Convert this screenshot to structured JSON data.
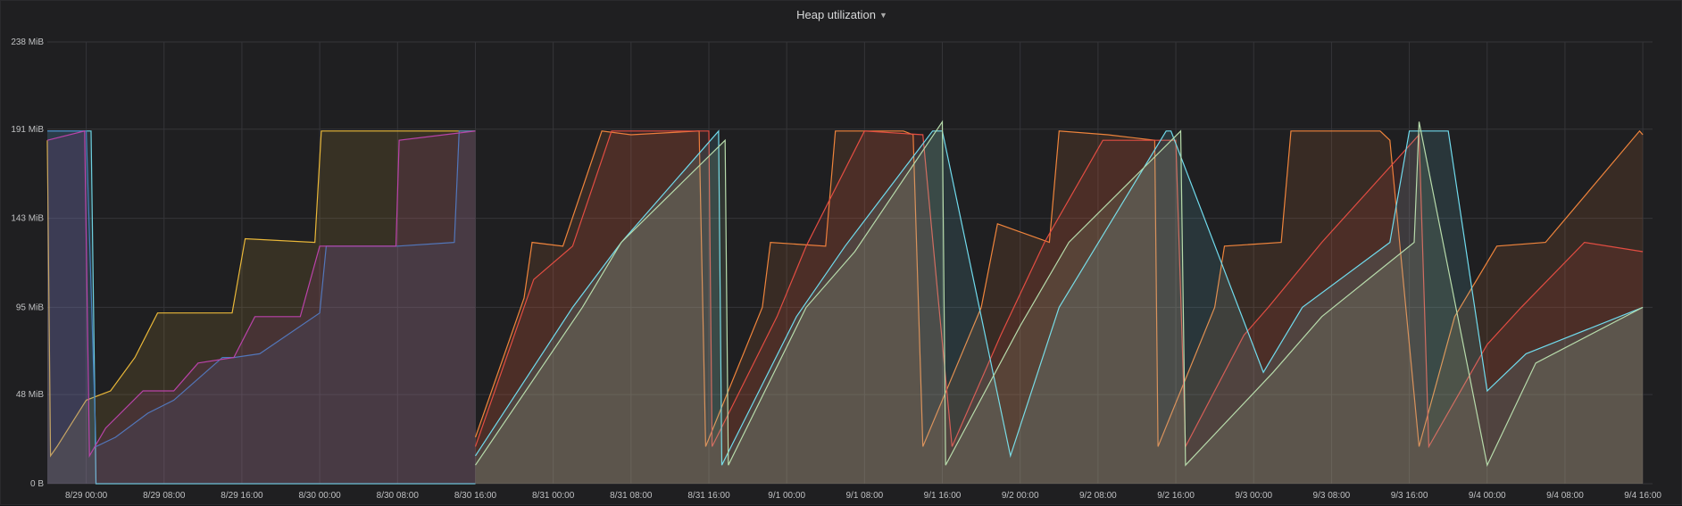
{
  "panel": {
    "title": "Heap utilization"
  },
  "chart_data": {
    "type": "area",
    "title": "Heap utilization",
    "xlabel": "",
    "ylabel": "",
    "y_unit": "MiB",
    "xlim": [
      "2016-08-28T20:00",
      "2016-09-04T17:00"
    ],
    "ylim": [
      0,
      238
    ],
    "grid": true,
    "legend": "none",
    "y_ticks": [
      "0 B",
      "48 MiB",
      "95 MiB",
      "143 MiB",
      "191 MiB",
      "238 MiB"
    ],
    "y_tick_values": [
      0,
      48,
      95,
      143,
      191,
      238
    ],
    "x_ticks": [
      "8/29 00:00",
      "8/29 08:00",
      "8/29 16:00",
      "8/30 00:00",
      "8/30 08:00",
      "8/30 16:00",
      "8/31 00:00",
      "8/31 08:00",
      "8/31 16:00",
      "9/1 00:00",
      "9/1 08:00",
      "9/1 16:00",
      "9/2 00:00",
      "9/2 08:00",
      "9/2 16:00",
      "9/3 00:00",
      "9/3 08:00",
      "9/3 16:00",
      "9/4 00:00",
      "9/4 08:00",
      "9/4 16:00"
    ],
    "x_tick_values": [
      "2016-08-29T00:00",
      "2016-08-29T08:00",
      "2016-08-29T16:00",
      "2016-08-30T00:00",
      "2016-08-30T08:00",
      "2016-08-30T16:00",
      "2016-08-31T00:00",
      "2016-08-31T08:00",
      "2016-08-31T16:00",
      "2016-09-01T00:00",
      "2016-09-01T08:00",
      "2016-09-01T16:00",
      "2016-09-02T00:00",
      "2016-09-02T08:00",
      "2016-09-02T16:00",
      "2016-09-03T00:00",
      "2016-09-03T08:00",
      "2016-09-03T16:00",
      "2016-09-04T00:00",
      "2016-09-04T08:00",
      "2016-09-04T16:00"
    ],
    "series": [
      {
        "color": "#eab839",
        "x": [
          "2016-08-28T20:00",
          "2016-08-28T20:20",
          "2016-08-28T21:00",
          "2016-08-29T00:00",
          "2016-08-29T02:30",
          "2016-08-29T05:00",
          "2016-08-29T07:20",
          "2016-08-29T15:00",
          "2016-08-29T16:20",
          "2016-08-29T23:30",
          "2016-08-30T00:10",
          "2016-08-30T15:50",
          "2016-08-30T16:00"
        ],
        "values": [
          185,
          15,
          20,
          45,
          50,
          68,
          92,
          92,
          132,
          130,
          190,
          190,
          190
        ]
      },
      {
        "color": "#6ed0e0",
        "x": [
          "2016-08-28T20:00",
          "2016-08-29T00:30",
          "2016-08-29T01:00",
          "2016-08-30T15:50",
          "2016-08-30T16:00"
        ],
        "values": [
          190,
          190,
          0,
          0,
          0
        ]
      },
      {
        "color": "#447ebc",
        "x": [
          "2016-08-28T20:00",
          "2016-08-28T21:00",
          "2016-08-29T00:00",
          "2016-08-29T01:00",
          "2016-08-29T03:00",
          "2016-08-29T06:20",
          "2016-08-29T09:00",
          "2016-08-29T14:00",
          "2016-08-29T15:10",
          "2016-08-29T17:50",
          "2016-08-30T00:00",
          "2016-08-30T00:40",
          "2016-08-30T08:00",
          "2016-08-30T13:50",
          "2016-08-30T14:20",
          "2016-08-30T16:00"
        ],
        "values": [
          190,
          190,
          190,
          20,
          25,
          38,
          45,
          68,
          68,
          70,
          92,
          128,
          128,
          130,
          190,
          190
        ]
      },
      {
        "color": "#ba43a9",
        "x": [
          "2016-08-28T20:00",
          "2016-08-28T23:50",
          "2016-08-29T00:20",
          "2016-08-29T02:00",
          "2016-08-29T05:50",
          "2016-08-29T09:00",
          "2016-08-29T11:30",
          "2016-08-29T15:10",
          "2016-08-29T17:20",
          "2016-08-29T22:00",
          "2016-08-30T00:00",
          "2016-08-30T07:50",
          "2016-08-30T08:10",
          "2016-08-30T16:00"
        ],
        "values": [
          185,
          190,
          15,
          30,
          50,
          50,
          65,
          68,
          90,
          90,
          128,
          128,
          185,
          190
        ]
      },
      {
        "color": "#ef843c",
        "x": [
          "2016-08-30T16:00",
          "2016-08-30T21:00",
          "2016-08-30T21:50",
          "2016-08-31T01:00",
          "2016-08-31T05:00",
          "2016-08-31T08:00",
          "2016-08-31T15:00",
          "2016-08-31T15:40",
          "2016-08-31T21:30",
          "2016-08-31T22:20",
          "2016-09-01T04:00",
          "2016-09-01T05:00",
          "2016-09-01T12:00",
          "2016-09-01T13:00",
          "2016-09-01T14:00",
          "2016-09-01T20:00",
          "2016-09-01T21:40",
          "2016-09-02T03:00",
          "2016-09-02T04:00",
          "2016-09-02T09:00",
          "2016-09-02T13:50",
          "2016-09-02T14:10",
          "2016-09-02T20:00",
          "2016-09-02T21:00",
          "2016-09-03T02:50",
          "2016-09-03T03:50",
          "2016-09-03T13:00",
          "2016-09-03T14:00",
          "2016-09-03T17:00",
          "2016-09-03T20:40",
          "2016-09-04T01:00",
          "2016-09-04T06:00",
          "2016-09-04T15:40",
          "2016-09-04T16:00"
        ],
        "values": [
          25,
          100,
          130,
          128,
          190,
          188,
          190,
          20,
          95,
          130,
          128,
          190,
          190,
          188,
          20,
          95,
          140,
          130,
          190,
          188,
          185,
          20,
          95,
          128,
          130,
          190,
          190,
          185,
          20,
          90,
          128,
          130,
          190,
          188
        ]
      },
      {
        "color": "#e24d42",
        "x": [
          "2016-08-30T16:00",
          "2016-08-30T22:00",
          "2016-08-31T02:00",
          "2016-08-31T06:00",
          "2016-08-31T16:00",
          "2016-08-31T16:20",
          "2016-08-31T23:00",
          "2016-09-01T02:00",
          "2016-09-01T08:00",
          "2016-09-01T14:00",
          "2016-09-01T17:00",
          "2016-09-01T22:00",
          "2016-09-02T02:30",
          "2016-09-02T08:30",
          "2016-09-02T16:00",
          "2016-09-02T17:00",
          "2016-09-02T23:00",
          "2016-09-03T01:30",
          "2016-09-03T07:00",
          "2016-09-03T17:00",
          "2016-09-03T18:00",
          "2016-09-04T00:00",
          "2016-09-04T03:30",
          "2016-09-04T10:00",
          "2016-09-04T16:00"
        ],
        "values": [
          20,
          110,
          128,
          190,
          190,
          20,
          90,
          128,
          190,
          188,
          20,
          80,
          130,
          185,
          185,
          20,
          80,
          95,
          130,
          188,
          20,
          75,
          95,
          130,
          125
        ]
      },
      {
        "color": "#70dbed",
        "x": [
          "2016-08-30T16:00",
          "2016-08-31T02:00",
          "2016-08-31T07:00",
          "2016-08-31T17:00",
          "2016-08-31T17:20",
          "2016-09-01T01:00",
          "2016-09-01T06:00",
          "2016-09-01T15:00",
          "2016-09-01T16:00",
          "2016-09-01T23:00",
          "2016-09-02T04:00",
          "2016-09-02T15:00",
          "2016-09-02T15:30",
          "2016-09-03T01:00",
          "2016-09-03T05:00",
          "2016-09-03T14:00",
          "2016-09-03T16:00",
          "2016-09-03T20:00",
          "2016-09-04T00:00",
          "2016-09-04T04:00",
          "2016-09-04T16:00"
        ],
        "values": [
          15,
          95,
          130,
          190,
          10,
          90,
          128,
          190,
          190,
          15,
          95,
          190,
          190,
          60,
          95,
          130,
          190,
          190,
          50,
          70,
          95
        ]
      },
      {
        "color": "#b7dbab",
        "x": [
          "2016-08-30T16:00",
          "2016-08-31T03:00",
          "2016-08-31T07:00",
          "2016-08-31T17:40",
          "2016-08-31T18:00",
          "2016-09-01T02:00",
          "2016-09-01T07:00",
          "2016-09-01T16:00",
          "2016-09-01T16:20",
          "2016-09-02T00:00",
          "2016-09-02T05:00",
          "2016-09-02T16:30",
          "2016-09-02T17:00",
          "2016-09-03T02:00",
          "2016-09-03T07:00",
          "2016-09-03T16:30",
          "2016-09-03T17:00",
          "2016-09-04T00:00",
          "2016-09-04T05:00",
          "2016-09-04T16:00"
        ],
        "values": [
          10,
          95,
          130,
          185,
          10,
          95,
          125,
          195,
          10,
          85,
          130,
          190,
          10,
          60,
          90,
          130,
          195,
          10,
          65,
          95
        ]
      }
    ]
  }
}
